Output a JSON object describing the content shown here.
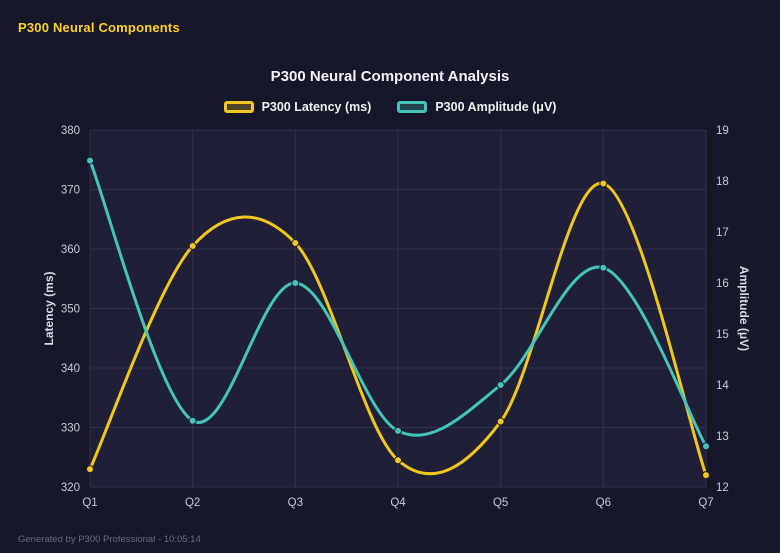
{
  "header": {
    "title": "P300 Neural Components"
  },
  "footer": {
    "text": "Generated by P300 Professional - 10:05:14"
  },
  "colors": {
    "background": "#17172a",
    "plot_background": "#1f1f38",
    "gridline": "#32324c",
    "tick_text": "#c9cad6",
    "axis_title_text": "#d8d9e2",
    "title_text": "#f2f2f6",
    "header_accent": "#ffd21f",
    "latency_series": "#f2c71d",
    "amplitude_series": "#45c4b8"
  },
  "chart_data": {
    "type": "line",
    "title": "P300 Neural Component Analysis",
    "categories": [
      "Q1",
      "Q2",
      "Q3",
      "Q4",
      "Q5",
      "Q6",
      "Q7"
    ],
    "series": [
      {
        "name": "P300 Latency (ms)",
        "axis": "left",
        "color": "#f2c71d",
        "values": [
          323,
          360.5,
          361,
          324.5,
          331,
          371,
          322
        ]
      },
      {
        "name": "P300 Amplitude (μV)",
        "axis": "right",
        "color": "#45c4b8",
        "values": [
          18.4,
          13.3,
          16.0,
          13.1,
          14.0,
          16.3,
          12.8
        ]
      }
    ],
    "left_axis": {
      "label": "Latency (ms)",
      "min": 320,
      "max": 380,
      "step": 10
    },
    "right_axis": {
      "label": "Amplitude (μV)",
      "min": 12,
      "max": 19,
      "step": 1
    },
    "grid": true,
    "legend_position": "top",
    "smoothing": "cubic"
  }
}
